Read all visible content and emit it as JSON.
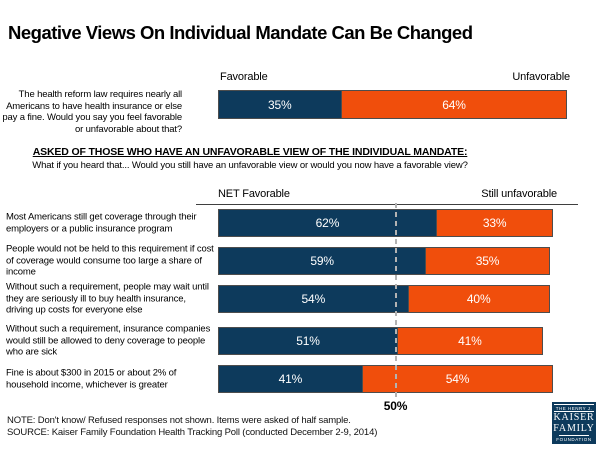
{
  "title": "Negative Views On Individual Mandate Can Be Changed",
  "colors": {
    "favorable": "#0d3a5c",
    "unfavorable": "#f04e0c",
    "bar_border": "#4d4d4d",
    "reference_line": "#b3b3b3",
    "logo_background": "#0d3a5c"
  },
  "top_chart": {
    "question": "The health reform law requires nearly all Americans to have health insurance or else pay a fine. Would you say you feel favorable or unfavorable about that?",
    "left_header": "Favorable",
    "right_header": "Unfavorable"
  },
  "section": {
    "heading": "ASKED OF THOSE WHO HAVE AN UNFAVORABLE VIEW OF THE INDIVIDUAL MANDATE:",
    "subheading": "What if you heard that... Would you still have an unfavorable view or would you now have a favorable view?",
    "left_header": "NET Favorable",
    "right_header": "Still unfavorable"
  },
  "chart_data": [
    {
      "id": "overall-favorability",
      "type": "bar",
      "stacked": true,
      "orientation": "horizontal",
      "categories": [
        "The health reform law requires nearly all Americans to have health insurance or else pay a fine. Would you say you feel favorable or unfavorable about that?"
      ],
      "series": [
        {
          "name": "Favorable",
          "color": "#0d3a5c",
          "values": [
            35
          ]
        },
        {
          "name": "Unfavorable",
          "color": "#f04e0c",
          "values": [
            64
          ]
        }
      ],
      "xlim": [
        0,
        100
      ],
      "value_label_format": "percent"
    },
    {
      "id": "mandate-arguments",
      "type": "bar",
      "stacked": true,
      "orientation": "horizontal",
      "categories": [
        "Most Americans still get coverage through their employers or a public insurance program",
        "People would not be held to this requirement if cost of coverage would consume too large a share of income",
        "Without such a requirement, people may wait until they are seriously ill to buy health insurance, driving up costs for everyone else",
        "Without such a requirement, insurance companies would still be allowed to deny coverage to people who are sick",
        "Fine is about $300 in 2015 or about 2% of household income, whichever is greater"
      ],
      "series": [
        {
          "name": "NET Favorable",
          "color": "#0d3a5c",
          "values": [
            62,
            59,
            54,
            51,
            41
          ]
        },
        {
          "name": "Still unfavorable",
          "color": "#f04e0c",
          "values": [
            33,
            35,
            40,
            41,
            54
          ]
        }
      ],
      "xlim": [
        0,
        100
      ],
      "value_label_format": "percent",
      "reference_line": {
        "value": 50,
        "label": "50%"
      }
    }
  ],
  "footer": {
    "note": "NOTE: Don't know/ Refused responses not shown. Items were asked of half sample.",
    "source": "SOURCE: Kaiser Family Foundation Health Tracking Poll (conducted December 2-9, 2014)"
  },
  "logo": {
    "line1": "THE HENRY J.",
    "line2": "KAISER",
    "line3": "FAMILY",
    "line4": "FOUNDATION"
  }
}
